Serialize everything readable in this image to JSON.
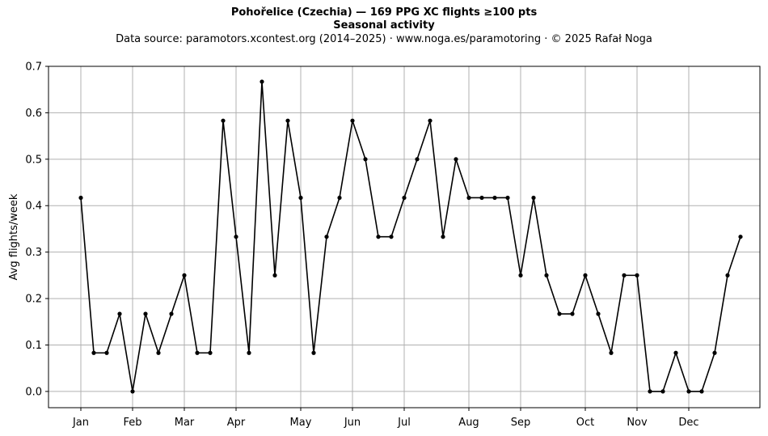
{
  "chart_data": {
    "type": "line",
    "title": "Pohořelice (Czechia)  —  169 PPG XC flights ≥100 pts",
    "subtitle": "Seasonal activity",
    "source_note": "Data source: paramotors.xcontest.org (2014–2025)  ·  www.noga.es/paramotoring  ·  © 2025 Rafał Noga",
    "xlabel": "",
    "ylabel": "Avg flights/week",
    "xlim": [
      -1.5,
      53.5
    ],
    "ylim": [
      -0.035,
      0.7
    ],
    "yticks": [
      0.0,
      0.1,
      0.2,
      0.3,
      0.4,
      0.5,
      0.6,
      0.7
    ],
    "yticklabels": [
      "0.0",
      "0.1",
      "0.2",
      "0.3",
      "0.4",
      "0.5",
      "0.6",
      "0.7"
    ],
    "xticks": [
      1,
      5,
      9,
      13,
      18,
      22,
      26,
      31,
      35,
      40,
      44,
      48
    ],
    "xticklabels": [
      "Jan",
      "Feb",
      "Mar",
      "Apr",
      "May",
      "Jun",
      "Jul",
      "Aug",
      "Sep",
      "Oct",
      "Nov",
      "Dec"
    ],
    "grid": true,
    "legend": "none",
    "line_color": "#000000",
    "series": [
      {
        "x": [
          1,
          2,
          3,
          4,
          5,
          6,
          7,
          8,
          9,
          10,
          11,
          12,
          13,
          14,
          15,
          16,
          17,
          18,
          19,
          20,
          21,
          22,
          23,
          24,
          25,
          26,
          27,
          28,
          29,
          30,
          31,
          32,
          33,
          34,
          35,
          36,
          37,
          38,
          39,
          40,
          41,
          42,
          43,
          44,
          45,
          46,
          47,
          48,
          49,
          50,
          51,
          52
        ],
        "values": [
          0.417,
          0.083,
          0.083,
          0.167,
          0.0,
          0.167,
          0.083,
          0.167,
          0.25,
          0.083,
          0.083,
          0.583,
          0.333,
          0.083,
          0.667,
          0.25,
          0.583,
          0.417,
          0.083,
          0.333,
          0.417,
          0.583,
          0.5,
          0.333,
          0.333,
          0.417,
          0.5,
          0.583,
          0.333,
          0.5,
          0.417,
          0.417,
          0.417,
          0.417,
          0.25,
          0.417,
          0.25,
          0.167,
          0.167,
          0.25,
          0.167,
          0.083,
          0.25,
          0.25,
          0.0,
          0.0,
          0.083,
          0.0,
          0.0,
          0.083,
          0.25,
          0.333
        ]
      }
    ]
  }
}
